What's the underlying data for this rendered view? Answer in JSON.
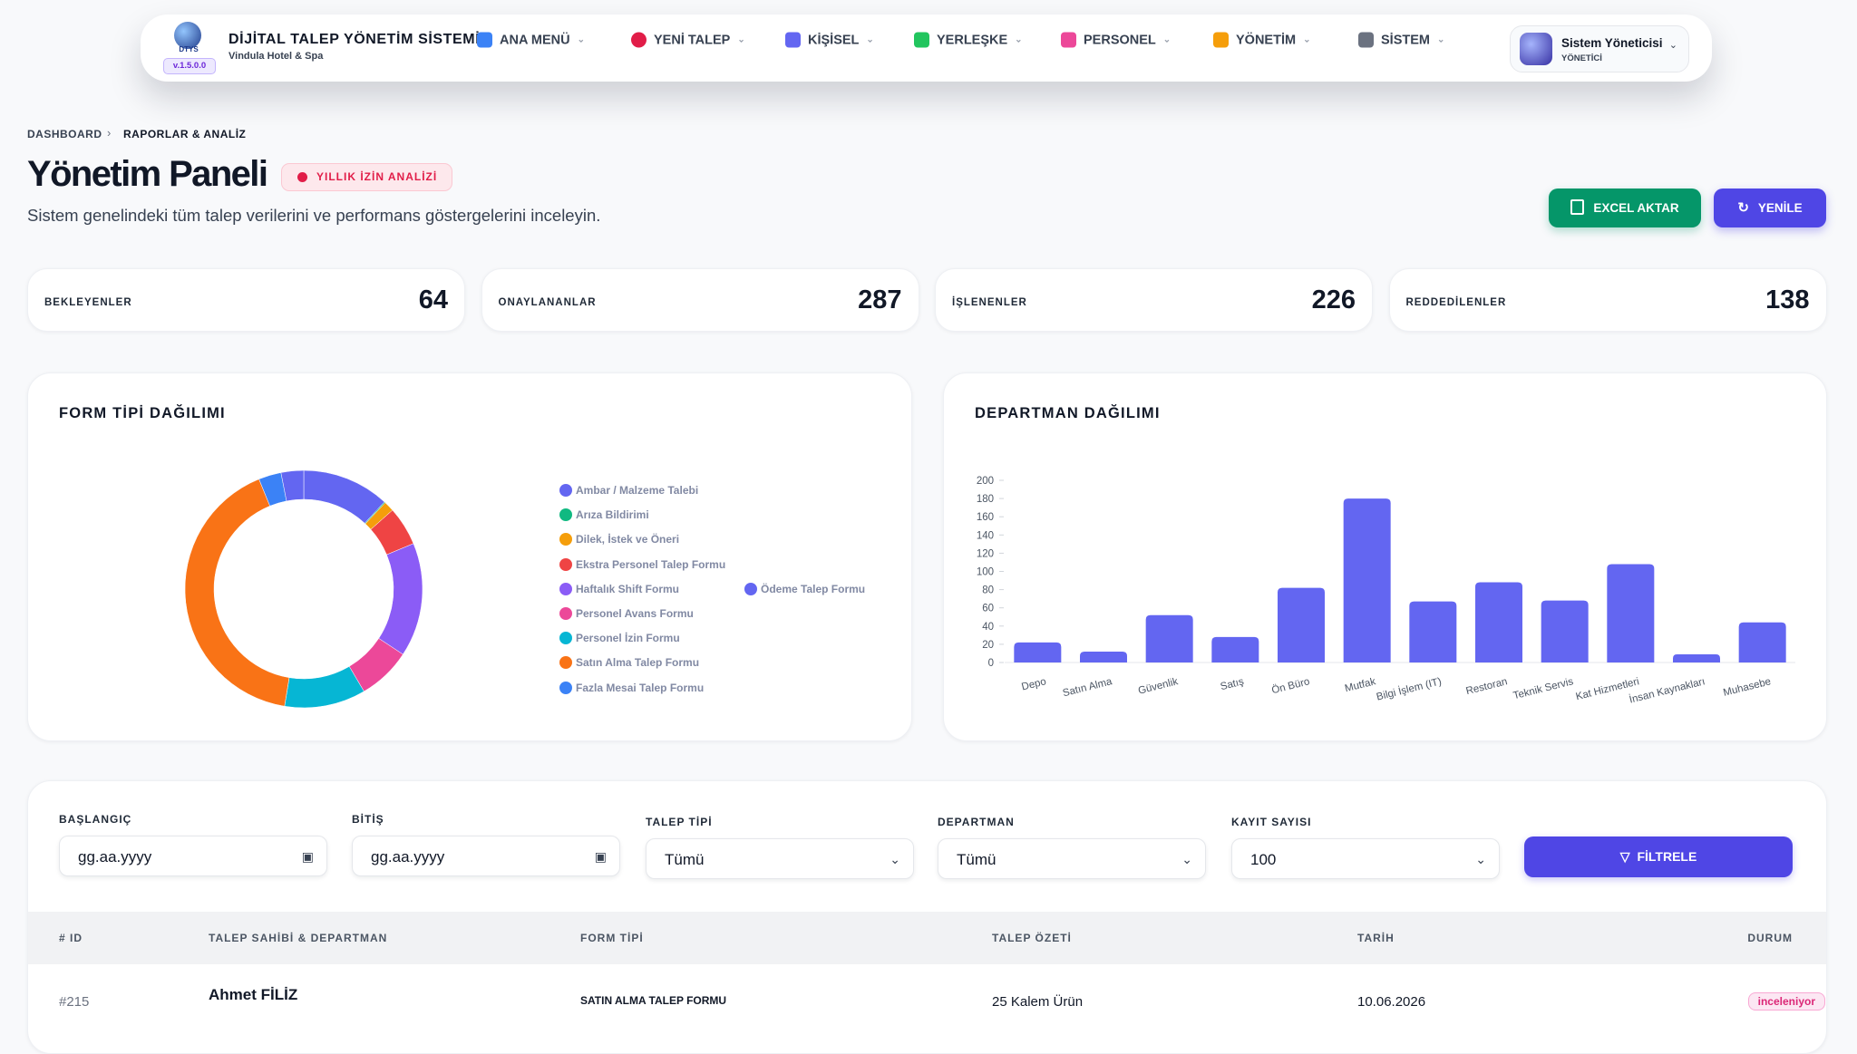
{
  "nav": {
    "logo_text": "DTYS",
    "version": "v.1.5.0.0",
    "title": "DİJİTAL TALEP YÖNETİM SİSTEMİ",
    "subtitle": "Vindula Hotel & Spa",
    "menu": [
      "ANA MENÜ",
      "YENİ TALEP",
      "KİŞİSEL",
      "YERLEŞKE",
      "PERSONEL",
      "YÖNETİM",
      "SİSTEM"
    ],
    "user": {
      "name": "Sistem Yöneticisi",
      "role": "YÖNETİCİ"
    }
  },
  "breadcrumb": [
    "DASHBOARD",
    "RAPORLAR & ANALİZ"
  ],
  "header": {
    "title": "Yönetim Paneli",
    "badge": "YILLIK İZİN ANALİZİ",
    "subtitle": "Sistem genelindeki tüm talep verilerini ve performans göstergelerini inceleyin.",
    "buttons": [
      "EXCEL AKTAR",
      "YENİLE"
    ]
  },
  "stats": [
    {
      "label": "BEKLEYENLER",
      "value": 64
    },
    {
      "label": "ONAYLANANLAR",
      "value": 287
    },
    {
      "label": "İŞLENENLER",
      "value": 226
    },
    {
      "label": "REDDEDİLENLER",
      "value": 138
    }
  ],
  "form_chart": {
    "type": "donut",
    "title": "FORM TİPİ DAĞILIMI",
    "categories": [
      "Ambar / Malzeme Talebi",
      "Arıza Bildirimi",
      "Dilek, İstek ve Öneri",
      "Ekstra Personel Talep Formu",
      "Haftalık Shift Formu",
      "Personel Avans Formu",
      "Personel İzin Formu",
      "Satın Alma Talep Formu",
      "Fazla Mesai Talep Formu",
      "Ödeme Talep Formu"
    ],
    "values": [
      85,
      1,
      10,
      38,
      111,
      52,
      79,
      295,
      22,
      22
    ],
    "colors": [
      "#6366f1",
      "#10b981",
      "#f59e0b",
      "#ef4444",
      "#8b5cf6",
      "#ec4899",
      "#06b6d4",
      "#f97316",
      "#3b82f6",
      "#6366f1"
    ]
  },
  "department_chart": {
    "type": "bar",
    "title": "DEPARTMAN DAĞILIMI",
    "categories": [
      "Depo",
      "Satın Alma",
      "Güvenlik",
      "Satış",
      "Ön Büro",
      "Mutfak",
      "Bilgi İşlem (IT)",
      "Restoran",
      "Teknik Servis",
      "Kat Hizmetleri",
      "İnsan Kaynakları",
      "Muhasebe"
    ],
    "values": [
      22,
      12,
      52,
      28,
      82,
      180,
      67,
      88,
      68,
      108,
      9,
      44
    ],
    "color": "#6366f1",
    "ylim": [
      0,
      200
    ],
    "yticks": [
      0,
      20,
      40,
      60,
      80,
      100,
      120,
      140,
      160,
      180,
      200
    ],
    "grid": false
  },
  "filters": [
    {
      "label": "BAŞLANGIÇ",
      "value": "gg.aa.yyyy"
    },
    {
      "label": "BİTİŞ",
      "value": "gg.aa.yyyy"
    },
    {
      "label": "TALEP TİPİ",
      "value": "Tümü"
    },
    {
      "label": "DEPARTMAN",
      "value": "Tümü"
    },
    {
      "label": "KAYIT SAYISI",
      "value": "100"
    }
  ],
  "filter_button": "FİLTRELE",
  "table": {
    "columns": [
      "# ID",
      "TALEP SAHİBİ & DEPARTMAN",
      "FORM TİPİ",
      "TALEP ÖZETİ",
      "TARİH",
      "DURUM"
    ],
    "rows": [
      [
        "#215",
        "Ahmet FİLİZ",
        "SATIN ALMA TALEP FORMU",
        "25 Kalem Ürün",
        "10.06.2026",
        "inceleniyor"
      ]
    ]
  }
}
